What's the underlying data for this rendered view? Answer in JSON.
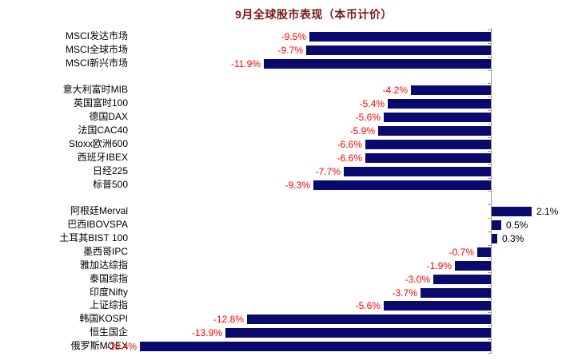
{
  "title": "9月全球股市表现（本币计价）",
  "colors": {
    "bar": "#0a0a6e",
    "negative_value_label": "#ff0000",
    "positive_value_label": "#000000",
    "category_label": "#000000",
    "title": "#801717",
    "axis": "#999999",
    "background": "#ffffff"
  },
  "chart_data": {
    "type": "bar",
    "orientation": "horizontal",
    "title": "9月全球股市表现（本币计价）",
    "unit": "%",
    "xlim": [
      -20,
      4
    ],
    "baseline_value": 0,
    "grid": false,
    "legend": false,
    "value_labels_shown": true,
    "groups": [
      {
        "categories": [
          "MSCI发达市场",
          "MSCI全球市场",
          "MSCI新兴市场"
        ],
        "values": [
          -9.5,
          -9.7,
          -11.9
        ],
        "labels": [
          "-9.5%",
          "-9.7%",
          "-11.9%"
        ]
      },
      {
        "categories": [
          "意大利富时MIB",
          "英国富时100",
          "德国DAX",
          "法国CAC40",
          "Stoxx欧洲600",
          "西班牙IBEX",
          "日经225",
          "标普500"
        ],
        "values": [
          -4.2,
          -5.4,
          -5.6,
          -5.9,
          -6.6,
          -6.6,
          -7.7,
          -9.3
        ],
        "labels": [
          "-4.2%",
          "-5.4%",
          "-5.6%",
          "-5.9%",
          "-6.6%",
          "-6.6%",
          "-7.7%",
          "-9.3%"
        ]
      },
      {
        "categories": [
          "阿根廷Merval",
          "巴西IBOVSPA",
          "土耳其BIST 100",
          "墨西哥IPC",
          "雅加达综指",
          "泰国综指",
          "印度Nifty",
          "上证综指",
          "韩国KOSPI",
          "恒生国企",
          "俄罗斯MOEX"
        ],
        "values": [
          2.1,
          0.5,
          0.3,
          -0.7,
          -1.9,
          -3.0,
          -3.7,
          -5.6,
          -12.8,
          -13.9,
          -18.4
        ],
        "labels": [
          "2.1%",
          "0.5%",
          "0.3%",
          "-0.7%",
          "-1.9%",
          "-3.0%",
          "-3.7%",
          "-5.6%",
          "-12.8%",
          "-13.9%",
          "-18.4%"
        ]
      }
    ]
  }
}
